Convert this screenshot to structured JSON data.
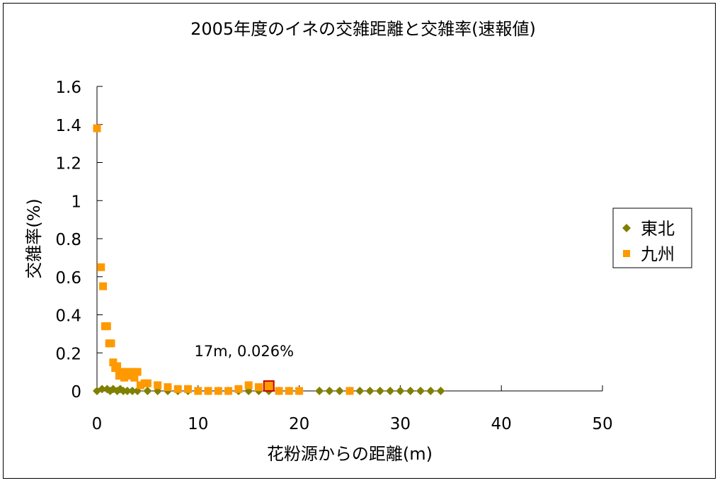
{
  "chart_data": {
    "type": "scatter",
    "title": "2005年度のイネの交雑距離と交雑率(速報値)",
    "xlabel": "花粉源からの距離(m)",
    "ylabel": "交雑率(%)",
    "xlim": [
      0,
      50
    ],
    "ylim": [
      0,
      1.6
    ],
    "x_ticks": [
      "0",
      "10",
      "20",
      "30",
      "40",
      "50"
    ],
    "y_ticks": [
      "0",
      "0.2",
      "0.4",
      "0.6",
      "0.8",
      "1",
      "1.2",
      "1.4",
      "1.6"
    ],
    "grid": false,
    "legend": "right",
    "annotation": {
      "text": "17m, 0.026%",
      "x": 17,
      "y": 0.026
    },
    "series": [
      {
        "name": "東北",
        "marker": "diamond",
        "color": "#808000",
        "x": [
          0,
          0.5,
          1,
          1.3,
          1.6,
          2,
          2.3,
          2.6,
          3,
          3.5,
          4,
          5,
          6,
          7,
          8,
          9,
          10,
          11,
          12,
          13,
          14,
          15,
          16,
          17,
          18,
          19,
          20,
          22,
          23,
          24,
          25,
          26,
          27,
          28,
          29,
          30,
          31,
          32,
          33,
          34
        ],
        "y": [
          0,
          0.01,
          0.01,
          0,
          0.01,
          0,
          0.01,
          0,
          0,
          0,
          0,
          0,
          0,
          0,
          0,
          0,
          0,
          0,
          0,
          0,
          0,
          0,
          0,
          0,
          0,
          0,
          0,
          0,
          0,
          0,
          0,
          0,
          0,
          0,
          0,
          0,
          0,
          0,
          0,
          0
        ]
      },
      {
        "name": "九州",
        "marker": "square",
        "color": "#FF9900",
        "x": [
          0,
          0.4,
          0.6,
          0.8,
          1,
          1.2,
          1.4,
          1.6,
          1.8,
          2,
          2.2,
          2.5,
          2.7,
          3,
          3.2,
          3.5,
          3.7,
          4,
          4.3,
          4.7,
          5,
          6,
          7,
          8,
          9,
          10,
          11,
          12,
          13,
          14,
          15,
          16,
          17,
          18,
          19,
          20,
          25
        ],
        "y": [
          1.38,
          0.65,
          0.55,
          0.34,
          0.34,
          0.25,
          0.25,
          0.15,
          0.12,
          0.13,
          0.08,
          0.1,
          0.07,
          0.1,
          0.08,
          0.1,
          0.07,
          0.1,
          0.03,
          0.04,
          0.04,
          0.03,
          0.02,
          0.01,
          0.01,
          0,
          0,
          0,
          0,
          0.01,
          0.03,
          0.02,
          0.026,
          0,
          0,
          0,
          0
        ]
      }
    ]
  }
}
